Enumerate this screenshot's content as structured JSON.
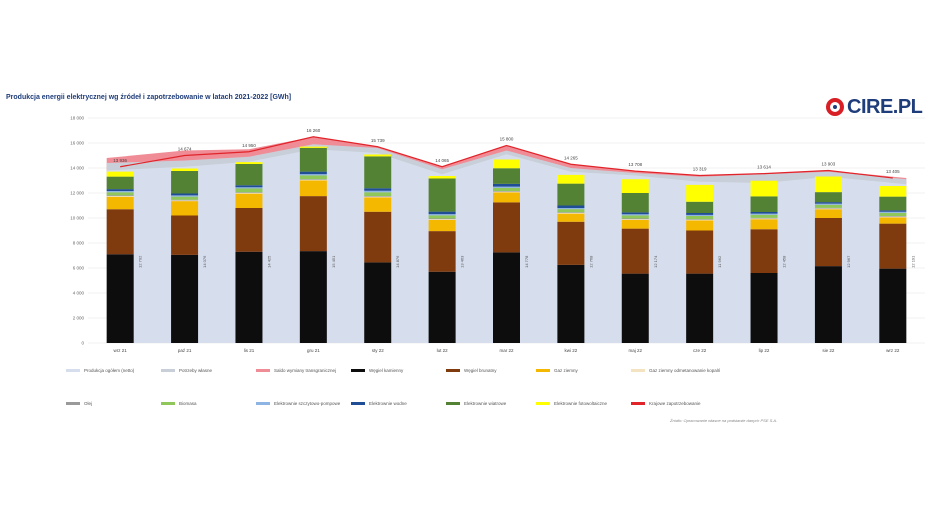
{
  "header": {
    "title": "Produkcja energii elektrycznej wg źródeł i zapotrzebowanie w latach 2021-2022 [GWh]",
    "logo_text": "CIRE.PL"
  },
  "source_note": "Źródło: Opracowanie własne na podstawie danych PSE S.A.",
  "colors": {
    "produkcja_ogolem": "#d6deed",
    "potrzeby_wlasne": "#c9cfd8",
    "saldo": "#f08c96",
    "wegiel_kamienny": "#0d0d0d",
    "wegiel_brunatny": "#7f3a0e",
    "gaz": "#f5b800",
    "gaz_odmetanowanie": "#f4e3c0",
    "olej": "#9a9a9a",
    "biomasa": "#8fc75a",
    "szczytowo_pompowe": "#8eb4e3",
    "wodne": "#1f4e96",
    "wiatrowe": "#548235",
    "fotowoltaiczne": "#ffff00",
    "krajowe_zapotrzebowanie": "#e0242a"
  },
  "chart_data": {
    "type": "bar",
    "title": "Produkcja energii elektrycznej wg źródeł i zapotrzebowanie w latach 2021-2022 [GWh]",
    "categories": [
      "wrz 21",
      "paź 21",
      "lis 21",
      "gru 21",
      "sty 22",
      "lut 22",
      "mar 22",
      "kwi 22",
      "maj 22",
      "cze 22",
      "lip 22",
      "sie 22",
      "wrz 22"
    ],
    "ylim": [
      0,
      18000
    ],
    "yticks": [
      0,
      2000,
      4000,
      6000,
      8000,
      10000,
      12000,
      14000,
      16000,
      18000
    ],
    "ytick_labels": [
      "0",
      "2 000",
      "4 000",
      "6 000",
      "8 000",
      "10 000",
      "12 000",
      "14 000",
      "16 000",
      "18 000"
    ],
    "grid": true,
    "legend_position": "bottom",
    "stack_series": [
      {
        "key": "wegiel_kamienny",
        "name": "Węgiel kamienny",
        "values": [
          7100,
          7050,
          7300,
          7350,
          6450,
          5700,
          7250,
          6250,
          5550,
          5550,
          5600,
          6150,
          5950
        ]
      },
      {
        "key": "wegiel_brunatny",
        "name": "Węgiel brunatny",
        "values": [
          3600,
          3150,
          3500,
          4400,
          4050,
          3250,
          4000,
          3450,
          3600,
          3450,
          3500,
          3850,
          3600
        ]
      },
      {
        "key": "gaz",
        "name": "Gaz ziemny",
        "values": [
          1000,
          1150,
          1150,
          1250,
          1150,
          900,
          800,
          650,
          700,
          800,
          800,
          700,
          500
        ]
      },
      {
        "key": "gaz_odmetanowanie",
        "name": "Gaz ziemny odmetanowanie kopalń",
        "values": [
          60,
          60,
          60,
          60,
          60,
          60,
          60,
          60,
          60,
          60,
          60,
          60,
          60
        ]
      },
      {
        "key": "olej",
        "name": "Olej",
        "values": [
          50,
          50,
          50,
          50,
          50,
          50,
          50,
          50,
          50,
          50,
          50,
          50,
          50
        ]
      },
      {
        "key": "biomasa",
        "name": "Biomasa",
        "values": [
          250,
          250,
          300,
          300,
          300,
          250,
          250,
          250,
          250,
          250,
          250,
          250,
          250
        ]
      },
      {
        "key": "szczytowo_pompowe",
        "name": "Elektrownie szczytowo-pompowe",
        "values": [
          100,
          100,
          100,
          100,
          120,
          100,
          100,
          90,
          90,
          90,
          90,
          90,
          90
        ]
      },
      {
        "key": "wodne",
        "name": "Elektrownie wodne",
        "values": [
          150,
          150,
          160,
          200,
          200,
          200,
          220,
          200,
          150,
          150,
          130,
          120,
          110
        ]
      },
      {
        "key": "wiatrowe",
        "name": "Elektrownie wiatrowe",
        "values": [
          1000,
          1800,
          1700,
          1900,
          2550,
          2650,
          1250,
          1750,
          1550,
          900,
          1250,
          800,
          1100
        ]
      },
      {
        "key": "fotowoltaiczne",
        "name": "Elektrownie fotowoltaiczne",
        "values": [
          400,
          200,
          150,
          100,
          150,
          200,
          700,
          700,
          1100,
          1350,
          1250,
          1250,
          850
        ]
      }
    ],
    "area_series": [
      {
        "key": "produkcja_ogolem",
        "name": "Produkcja ogółem (netto)",
        "values": [
          13800,
          14100,
          14500,
          15500,
          15200,
          13500,
          15100,
          13700,
          13400,
          12900,
          12800,
          13300,
          12700
        ]
      },
      {
        "key": "potrzeby_wlasne",
        "name": "Potrzeby własne",
        "values": [
          14400,
          14600,
          14900,
          15900,
          15600,
          13900,
          15400,
          14000,
          13600,
          13300,
          13500,
          13700,
          13100
        ]
      },
      {
        "key": "saldo",
        "name": "Saldo wymiany transgranicznej",
        "values": [
          14800,
          15400,
          15500,
          16500,
          15700,
          14100,
          15800,
          14300,
          13750,
          13400,
          13550,
          13800,
          13200
        ]
      }
    ],
    "line_series": [
      {
        "key": "krajowe_zapotrzebowanie",
        "name": "Krajowe zapotrzebowanie",
        "values": [
          14100,
          15000,
          15300,
          16500,
          15700,
          14100,
          15800,
          14300,
          13750,
          13400,
          13550,
          13800,
          13200
        ]
      }
    ],
    "top_labels": [
      "13 936",
      "14 674",
      "14 950",
      "16 260",
      "15 739",
      "14 065",
      "15 800",
      "14 265",
      "13 708",
      "13 319",
      "13 614",
      "13 903",
      "13 405"
    ],
    "side_labels": [
      "12 702",
      "14 076",
      "14 425",
      "15 451",
      "14 876",
      "13 463",
      "14 778",
      "12 768",
      "12 174",
      "11 962",
      "12 458",
      "12 967",
      "12 191"
    ]
  },
  "legend": [
    {
      "label": "Produkcja ogółem (netto)",
      "color_key": "produkcja_ogolem"
    },
    {
      "label": "Potrzeby własne",
      "color_key": "potrzeby_wlasne"
    },
    {
      "label": "Saldo wymiany transgranicznej",
      "color_key": "saldo"
    },
    {
      "label": "Węgiel kamienny",
      "color_key": "wegiel_kamienny"
    },
    {
      "label": "Węgiel brunatny",
      "color_key": "wegiel_brunatny"
    },
    {
      "label": "Gaz ziemny",
      "color_key": "gaz"
    },
    {
      "label": "Gaz ziemny odmetanowanie kopalń",
      "color_key": "gaz_odmetanowanie"
    },
    {
      "label": "Olej",
      "color_key": "olej"
    },
    {
      "label": "Biomasa",
      "color_key": "biomasa"
    },
    {
      "label": "Elektrownie szczytowo-pompowe",
      "color_key": "szczytowo_pompowe"
    },
    {
      "label": "Elektrownie wodne",
      "color_key": "wodne"
    },
    {
      "label": "Elektrownie wiatrowe",
      "color_key": "wiatrowe"
    },
    {
      "label": "Elektrownie fotowoltaiczne",
      "color_key": "fotowoltaiczne"
    },
    {
      "label": "Krajowe zapotrzebowanie",
      "color_key": "krajowe_zapotrzebowanie"
    }
  ]
}
